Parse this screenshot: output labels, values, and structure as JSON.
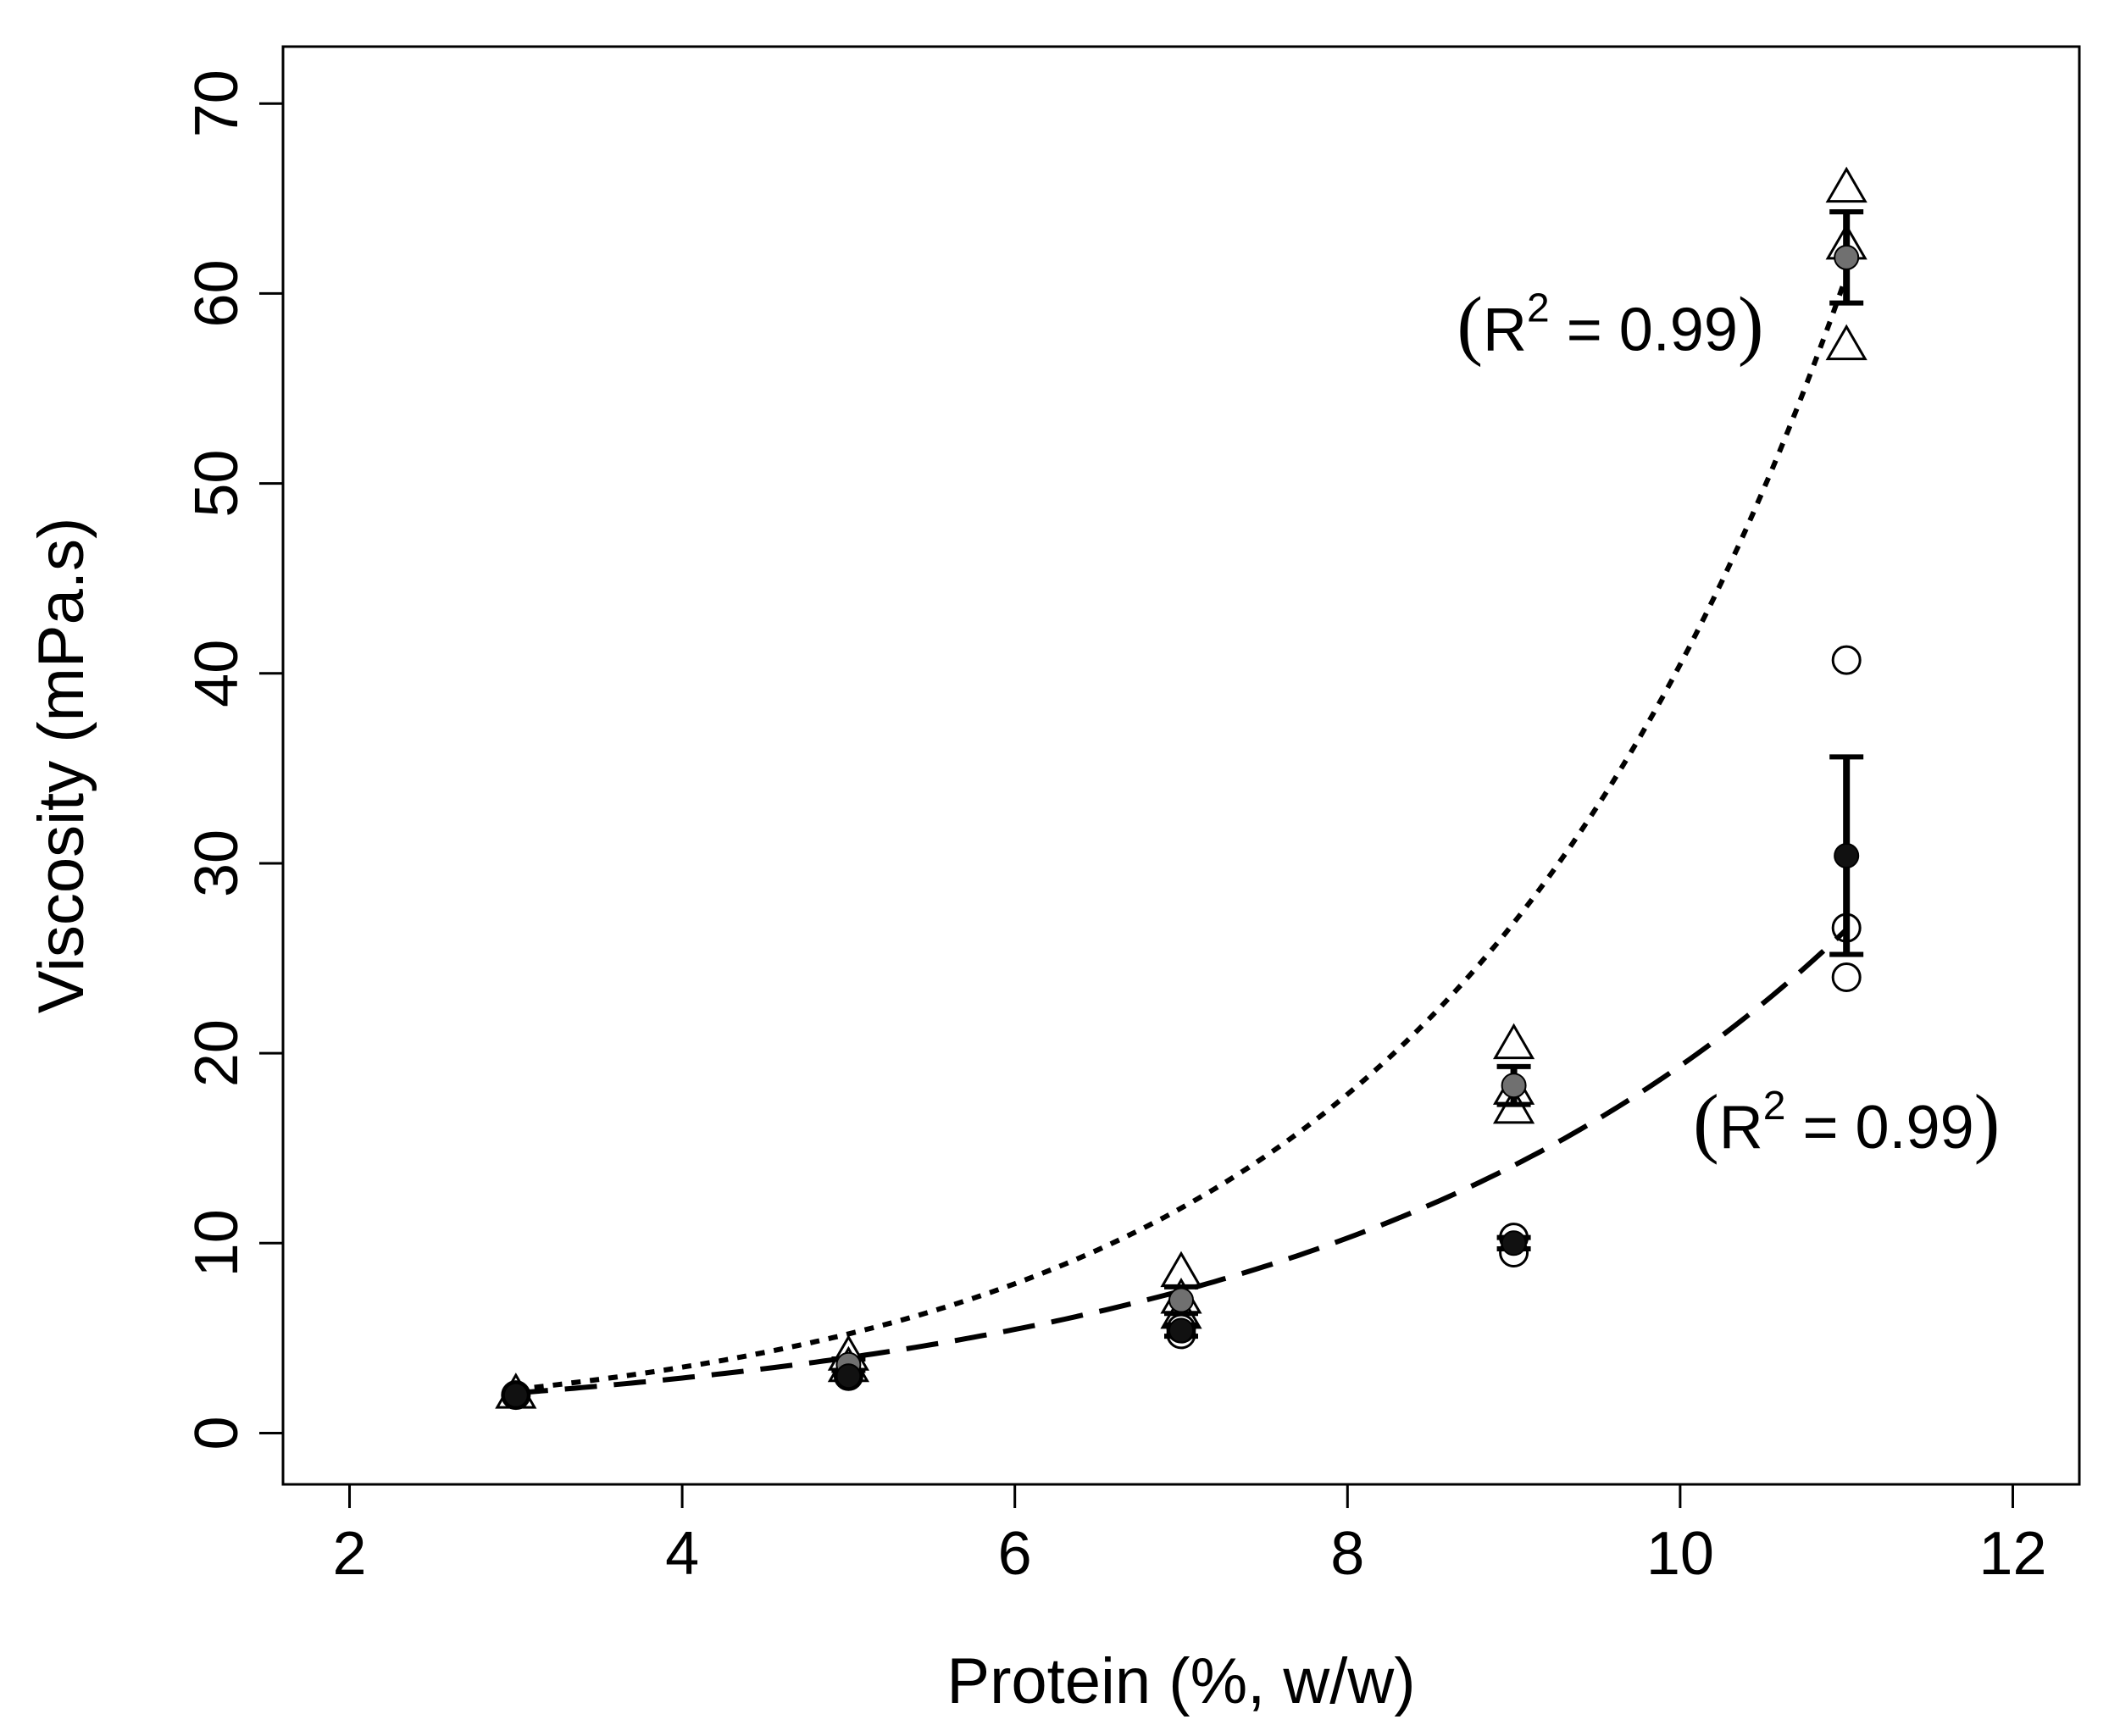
{
  "chart_data": {
    "type": "scatter",
    "title": "",
    "xlabel": "Protein (%, w/w)",
    "ylabel": "Viscosity (mPa.s)",
    "xlim": [
      1.6,
      12.4
    ],
    "ylim": [
      -2.7,
      73
    ],
    "xticks": [
      2,
      4,
      6,
      8,
      10,
      12
    ],
    "yticks": [
      0,
      10,
      20,
      30,
      40,
      50,
      60,
      70
    ],
    "grid": false,
    "series": [
      {
        "name": "triangles (upper series)",
        "marker": "open-triangle",
        "points": [
          {
            "x": 3,
            "y": 2.0
          },
          {
            "x": 5,
            "y": 4.0
          },
          {
            "x": 5,
            "y": 3.4
          },
          {
            "x": 7,
            "y": 8.4
          },
          {
            "x": 7,
            "y": 7.0
          },
          {
            "x": 7,
            "y": 6.2
          },
          {
            "x": 9,
            "y": 20.4
          },
          {
            "x": 9,
            "y": 18.0
          },
          {
            "x": 9,
            "y": 17.0
          },
          {
            "x": 11,
            "y": 65.5
          },
          {
            "x": 11,
            "y": 62.5
          },
          {
            "x": 11,
            "y": 57.2
          }
        ],
        "means": [
          {
            "x": 3,
            "y": 2.0,
            "err": 0.1
          },
          {
            "x": 5,
            "y": 3.6,
            "err": 0.3
          },
          {
            "x": 7,
            "y": 7.0,
            "err": 0.7
          },
          {
            "x": 9,
            "y": 18.3,
            "err": 1.0
          },
          {
            "x": 11,
            "y": 61.9,
            "err": 2.4
          }
        ],
        "fit": {
          "style": "dotted",
          "a": 0.674,
          "b": 0.4095,
          "x_range": [
            3,
            11
          ]
        },
        "annotation": {
          "label": "R",
          "sup": "2",
          "eq": " = 0.99",
          "open": "(",
          "close": ")",
          "x": 9.58,
          "y": 57
        }
      },
      {
        "name": "circles (lower series)",
        "marker": "open-circle",
        "points": [
          {
            "x": 3,
            "y": 2.0
          },
          {
            "x": 5,
            "y": 3.0
          },
          {
            "x": 7,
            "y": 5.5
          },
          {
            "x": 7,
            "y": 5.2
          },
          {
            "x": 9,
            "y": 10.3
          },
          {
            "x": 9,
            "y": 9.5
          },
          {
            "x": 11,
            "y": 40.7
          },
          {
            "x": 11,
            "y": 26.6
          },
          {
            "x": 11,
            "y": 24.0
          }
        ],
        "means": [
          {
            "x": 3,
            "y": 2.0,
            "err": 0.1
          },
          {
            "x": 5,
            "y": 3.0,
            "err": 0.2
          },
          {
            "x": 7,
            "y": 5.4,
            "err": 0.3
          },
          {
            "x": 9,
            "y": 10.0,
            "err": 0.3
          },
          {
            "x": 11,
            "y": 30.4,
            "err": 5.2
          }
        ],
        "fit": {
          "style": "dashed",
          "a": 0.8185,
          "b": 0.3162,
          "x_range": [
            3,
            11
          ]
        },
        "annotation": {
          "label": "R",
          "sup": "2",
          "eq": " = 0.99",
          "open": "(",
          "close": ")",
          "x": 11.0,
          "y": 15
        }
      }
    ]
  }
}
